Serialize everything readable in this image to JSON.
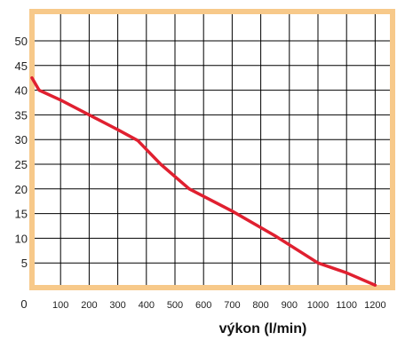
{
  "chart_data": {
    "type": "line",
    "title": "",
    "xlabel": "výkon (l/min)",
    "ylabel": "",
    "xlim": [
      0,
      1260
    ],
    "ylim": [
      0,
      54
    ],
    "x_ticks": [
      0,
      100,
      200,
      300,
      400,
      500,
      600,
      700,
      800,
      900,
      1000,
      1100,
      1200
    ],
    "y_ticks": [
      5,
      10,
      15,
      20,
      25,
      30,
      35,
      40,
      45,
      50
    ],
    "x_tick_labels": [
      "0",
      "100",
      "200",
      "300",
      "400",
      "500",
      "600",
      "700",
      "800",
      "900",
      "1000",
      "1100",
      "1200"
    ],
    "y_tick_labels": [
      "5",
      "10",
      "15",
      "20",
      "25",
      "30",
      "35",
      "40",
      "45",
      "50"
    ],
    "grid": true,
    "legend": "none",
    "series": [
      {
        "x": [
          0,
          25,
          100,
          200,
          300,
          370,
          450,
          550,
          700,
          850,
          1000,
          1100,
          1200
        ],
        "y": [
          42.5,
          40,
          38,
          35,
          32,
          29.8,
          25,
          20,
          15.5,
          10.5,
          5,
          3,
          0.5
        ],
        "color": "#e02030"
      }
    ],
    "colors": {
      "frame": "#f7c98a",
      "grid": "#000000",
      "line": "#e02030"
    }
  }
}
